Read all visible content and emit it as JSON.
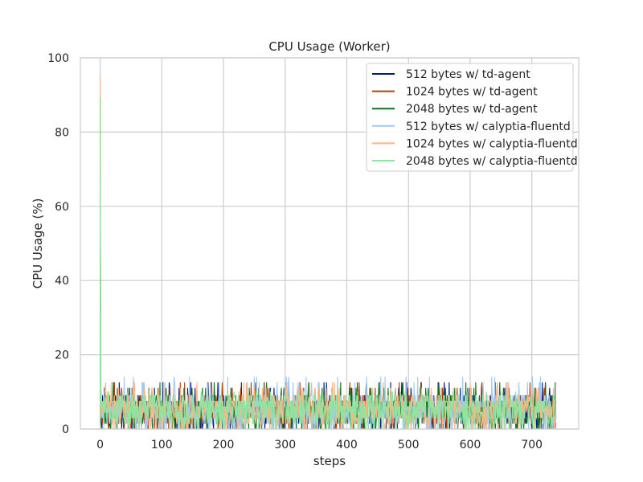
{
  "chart_data": {
    "type": "line",
    "title": "CPU Usage (Worker)",
    "xlabel": "steps",
    "ylabel": "CPU Usage (%)",
    "xlim": [
      -32,
      776
    ],
    "ylim": [
      0,
      100
    ],
    "xticks": [
      0,
      100,
      200,
      300,
      400,
      500,
      600,
      700
    ],
    "yticks": [
      0,
      20,
      40,
      60,
      80,
      100
    ],
    "grid": true,
    "legend_position": "top-right",
    "series": [
      {
        "name": "512 bytes w/ td-agent",
        "color": "#001c7f",
        "points": 740,
        "peak": [
          0,
          89.0
        ],
        "steady_range": [
          0,
          12.5
        ]
      },
      {
        "name": "1024 bytes w/ td-agent",
        "color": "#b1400d",
        "points": 740,
        "peak": [
          0,
          89.0
        ],
        "steady_range": [
          0,
          12.5
        ]
      },
      {
        "name": "2048 bytes w/ td-agent",
        "color": "#12711c",
        "points": 740,
        "peak": [
          0,
          89.5
        ],
        "steady_range": [
          0,
          12.5
        ]
      },
      {
        "name": "512 bytes w/ calyptia-fluentd",
        "color": "#a1c9f4",
        "points": 740,
        "peak": [
          0,
          89.5
        ],
        "steady_range": [
          0,
          14.0
        ]
      },
      {
        "name": "1024 bytes w/ calyptia-fluentd",
        "color": "#ffb482",
        "points": 740,
        "peak": [
          0,
          95.0
        ],
        "steady_range": [
          0,
          12.5
        ]
      },
      {
        "name": "2048 bytes w/ calyptia-fluentd",
        "color": "#8de5a1",
        "points": 740,
        "peak": [
          0,
          89.0
        ],
        "steady_range": [
          0,
          10.0
        ]
      }
    ]
  }
}
